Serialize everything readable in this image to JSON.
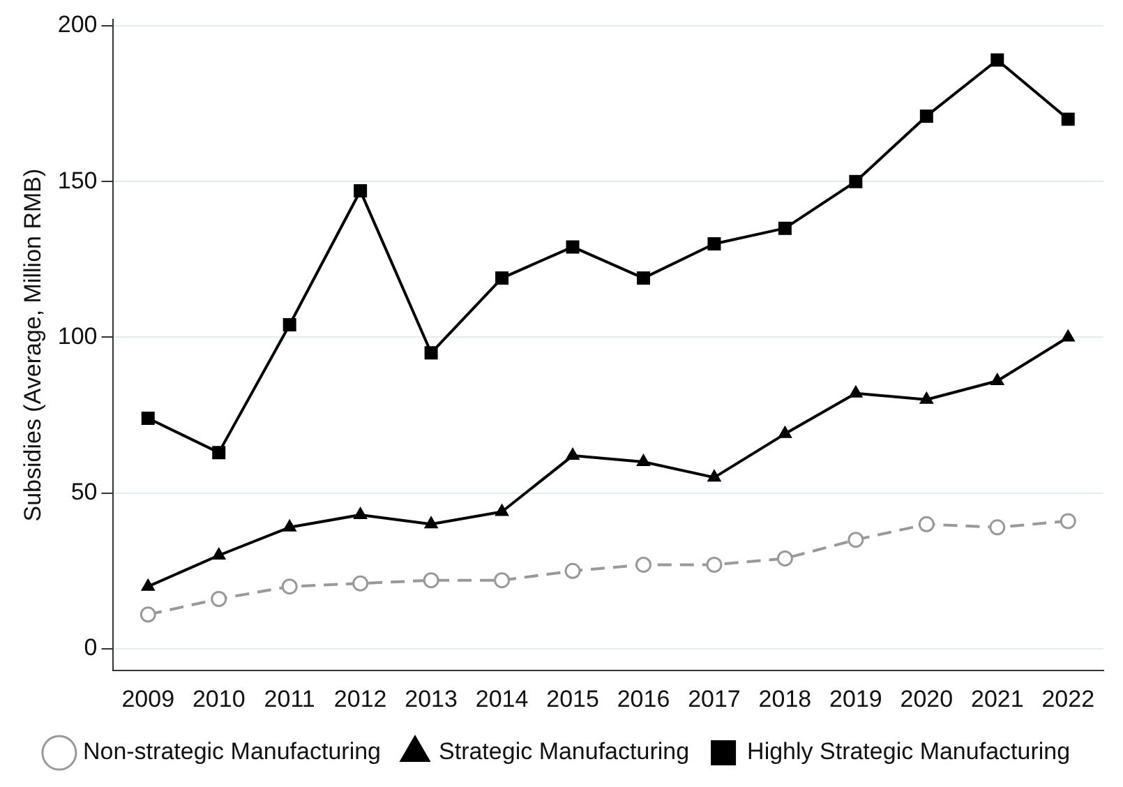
{
  "chart_data": {
    "type": "line",
    "ylabel": "Subsidies (Average, Million RMB)",
    "categories": [
      "2009",
      "2010",
      "2011",
      "2012",
      "2013",
      "2014",
      "2015",
      "2016",
      "2017",
      "2018",
      "2019",
      "2020",
      "2021",
      "2022"
    ],
    "series": [
      {
        "name": "Non-strategic Manufacturing",
        "color": "#999999",
        "marker": "circle",
        "line_style": "dashed",
        "values": [
          11,
          16,
          20,
          21,
          22,
          22,
          25,
          27,
          27,
          29,
          35,
          40,
          39,
          41
        ]
      },
      {
        "name": "Strategic Manufacturing",
        "color": "#000000",
        "marker": "triangle",
        "line_style": "solid",
        "values": [
          20,
          30,
          39,
          43,
          40,
          44,
          62,
          60,
          55,
          69,
          82,
          80,
          86,
          100
        ]
      },
      {
        "name": "Highly Strategic Manufacturing",
        "color": "#000000",
        "marker": "square",
        "line_style": "solid",
        "values": [
          74,
          63,
          104,
          147,
          95,
          119,
          129,
          119,
          130,
          135,
          150,
          171,
          189,
          170
        ]
      }
    ],
    "ylim": [
      -7,
      202
    ],
    "yticks": [
      0,
      50,
      100,
      150,
      200
    ],
    "grid": "y",
    "legend": "bottom"
  }
}
